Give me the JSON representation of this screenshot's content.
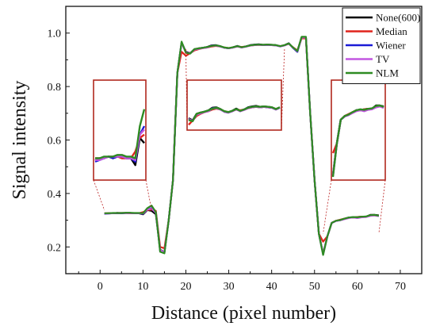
{
  "chart_data": {
    "type": "line",
    "xlabel": "Distance (pixel number)",
    "ylabel": "Signal intensity",
    "xlim": [
      -8,
      75
    ],
    "ylim": [
      0.1,
      1.1
    ],
    "xticks": [
      0,
      10,
      20,
      30,
      40,
      50,
      60,
      70
    ],
    "yticks": [
      0.2,
      0.4,
      0.6,
      0.8,
      1.0
    ],
    "xtick_labels": [
      "0",
      "10",
      "20",
      "30",
      "40",
      "50",
      "60",
      "70"
    ],
    "ytick_labels": [
      "0.2",
      "0.4",
      "0.6",
      "0.8",
      "1.0"
    ],
    "legend_position": "top-right",
    "x": [
      1,
      2,
      3,
      4,
      5,
      6,
      7,
      8,
      9,
      10,
      11,
      12,
      13,
      14,
      15,
      16,
      17,
      18,
      19,
      20,
      21,
      22,
      23,
      24,
      25,
      26,
      27,
      28,
      29,
      30,
      31,
      32,
      33,
      34,
      35,
      36,
      37,
      38,
      39,
      40,
      41,
      42,
      43,
      44,
      45,
      46,
      47,
      48,
      49,
      50,
      51,
      52,
      53,
      54,
      55,
      56,
      57,
      58,
      59,
      60,
      61,
      62,
      63,
      64,
      65
    ],
    "series": [
      {
        "name": "None(600)",
        "color": "#000000",
        "values": [
          0.325,
          0.326,
          0.326,
          0.327,
          0.326,
          0.327,
          0.327,
          0.326,
          0.326,
          0.322,
          0.338,
          0.335,
          0.322,
          0.19,
          0.18,
          0.3,
          0.45,
          0.85,
          0.965,
          0.93,
          0.925,
          0.94,
          0.943,
          0.945,
          0.948,
          0.954,
          0.955,
          0.951,
          0.945,
          0.943,
          0.947,
          0.952,
          0.947,
          0.95,
          0.955,
          0.957,
          0.958,
          0.956,
          0.957,
          0.956,
          0.955,
          0.951,
          0.955,
          0.962,
          0.945,
          0.93,
          0.985,
          0.985,
          0.7,
          0.45,
          0.25,
          0.175,
          0.24,
          0.29,
          0.298,
          0.3,
          0.305,
          0.31,
          0.31,
          0.312,
          0.313,
          0.313,
          0.32,
          0.32,
          0.318
        ]
      },
      {
        "name": "Median",
        "color": "#e0241b",
        "values": [
          0.326,
          0.326,
          0.326,
          0.327,
          0.327,
          0.327,
          0.326,
          0.326,
          0.326,
          0.33,
          0.338,
          0.34,
          0.335,
          0.2,
          0.195,
          0.3,
          0.45,
          0.85,
          0.93,
          0.915,
          0.925,
          0.935,
          0.94,
          0.944,
          0.946,
          0.95,
          0.952,
          0.95,
          0.946,
          0.944,
          0.946,
          0.95,
          0.948,
          0.95,
          0.953,
          0.955,
          0.956,
          0.955,
          0.956,
          0.955,
          0.954,
          0.951,
          0.954,
          0.96,
          0.947,
          0.935,
          0.98,
          0.982,
          0.7,
          0.45,
          0.25,
          0.22,
          0.24,
          0.29,
          0.298,
          0.302,
          0.306,
          0.31,
          0.31,
          0.312,
          0.313,
          0.313,
          0.318,
          0.318,
          0.317
        ]
      },
      {
        "name": "Wiener",
        "color": "#1b1bd6",
        "values": [
          0.324,
          0.325,
          0.326,
          0.327,
          0.326,
          0.327,
          0.327,
          0.326,
          0.326,
          0.324,
          0.34,
          0.345,
          0.33,
          0.185,
          0.178,
          0.3,
          0.45,
          0.85,
          0.965,
          0.928,
          0.924,
          0.939,
          0.942,
          0.945,
          0.947,
          0.953,
          0.954,
          0.95,
          0.945,
          0.943,
          0.946,
          0.951,
          0.946,
          0.95,
          0.954,
          0.956,
          0.957,
          0.955,
          0.956,
          0.955,
          0.954,
          0.95,
          0.954,
          0.961,
          0.944,
          0.93,
          0.984,
          0.984,
          0.7,
          0.45,
          0.25,
          0.172,
          0.24,
          0.29,
          0.297,
          0.3,
          0.305,
          0.31,
          0.311,
          0.309,
          0.312,
          0.313,
          0.318,
          0.319,
          0.316
        ]
      },
      {
        "name": "TV",
        "color": "#c257e0",
        "values": [
          0.325,
          0.325,
          0.326,
          0.327,
          0.327,
          0.327,
          0.327,
          0.326,
          0.326,
          0.325,
          0.34,
          0.343,
          0.328,
          0.188,
          0.18,
          0.3,
          0.45,
          0.85,
          0.963,
          0.928,
          0.924,
          0.938,
          0.941,
          0.944,
          0.946,
          0.952,
          0.953,
          0.95,
          0.945,
          0.943,
          0.946,
          0.95,
          0.946,
          0.949,
          0.953,
          0.955,
          0.956,
          0.955,
          0.956,
          0.955,
          0.954,
          0.95,
          0.954,
          0.96,
          0.945,
          0.932,
          0.983,
          0.983,
          0.7,
          0.45,
          0.25,
          0.174,
          0.24,
          0.29,
          0.297,
          0.3,
          0.304,
          0.308,
          0.31,
          0.308,
          0.311,
          0.312,
          0.316,
          0.318,
          0.315
        ]
      },
      {
        "name": "NLM",
        "color": "#2e8b22",
        "values": [
          0.326,
          0.326,
          0.327,
          0.327,
          0.327,
          0.328,
          0.328,
          0.327,
          0.327,
          0.326,
          0.345,
          0.355,
          0.33,
          0.182,
          0.176,
          0.3,
          0.45,
          0.85,
          0.968,
          0.926,
          0.923,
          0.94,
          0.943,
          0.945,
          0.948,
          0.952,
          0.954,
          0.951,
          0.946,
          0.944,
          0.947,
          0.951,
          0.947,
          0.95,
          0.954,
          0.956,
          0.957,
          0.956,
          0.957,
          0.956,
          0.955,
          0.951,
          0.955,
          0.961,
          0.946,
          0.933,
          0.986,
          0.986,
          0.7,
          0.45,
          0.25,
          0.17,
          0.24,
          0.29,
          0.298,
          0.301,
          0.306,
          0.31,
          0.312,
          0.311,
          0.313,
          0.314,
          0.319,
          0.32,
          0.317
        ]
      }
    ],
    "insets": [
      {
        "id": "left",
        "x_range": [
          1,
          12
        ],
        "y_range": [
          0.315,
          0.36
        ]
      },
      {
        "id": "middle",
        "x_range": [
          20,
          43
        ],
        "y_range": [
          0.91,
          0.97
        ]
      },
      {
        "id": "right",
        "x_range": [
          52,
          65
        ],
        "y_range": [
          0.17,
          0.33
        ]
      }
    ]
  }
}
